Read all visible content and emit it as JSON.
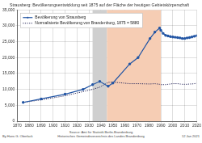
{
  "chart_data": {
    "type": "line",
    "title": "Strausberg: Bevölkerungsentwicklung seit 1875 auf der Fläche der heutigen Gebietskörperschaft",
    "x": [
      1875,
      1890,
      1910,
      1925,
      1933,
      1939,
      1946,
      1950,
      1964,
      1971,
      1981,
      1985,
      1989,
      1990,
      1992,
      1994,
      1996,
      1998,
      2000,
      2002,
      2004,
      2006,
      2008,
      2010,
      2012,
      2014,
      2016,
      2018,
      2020
    ],
    "series": [
      {
        "name": "Bevölkerung von Strausberg",
        "color": "#2255a4",
        "marker": "circle",
        "line_style": "solid",
        "values": [
          5900,
          7000,
          8500,
          10000,
          11500,
          12500,
          11000,
          12000,
          18000,
          20000,
          26000,
          28000,
          29300,
          28600,
          27600,
          27000,
          26800,
          26600,
          26500,
          26400,
          26300,
          26200,
          26000,
          26000,
          26200,
          26300,
          26500,
          26700,
          26900
        ]
      },
      {
        "name": "Normalisierte Bevölkerung von Brandenburg, 1875 = 5880",
        "color": "#2b2b5e",
        "line_style": "dotted",
        "values": [
          5900,
          6700,
          8000,
          9300,
          10000,
          10700,
          12200,
          12300,
          11800,
          11800,
          11700,
          11800,
          11600,
          11500,
          11500,
          11500,
          11600,
          11700,
          11800,
          11800,
          11800,
          11700,
          11600,
          11600,
          11600,
          11700,
          11700,
          11800,
          11900
        ]
      }
    ],
    "xlim": [
      1870,
      2020
    ],
    "xticks": [
      1870,
      1880,
      1890,
      1900,
      1910,
      1920,
      1930,
      1940,
      1950,
      1960,
      1970,
      1980,
      1990,
      2000,
      2010,
      2020
    ],
    "ylim": [
      0,
      35000
    ],
    "yticks": [
      0,
      {
        "value": 5000,
        "label": "5,000"
      },
      {
        "value": 10000,
        "label": "10,000"
      },
      {
        "value": 15000,
        "label": "15,000"
      },
      {
        "value": 20000,
        "label": "20,000"
      },
      {
        "value": 25000,
        "label": "25,000"
      },
      {
        "value": 30000,
        "label": "30,000"
      },
      {
        "value": 35000,
        "label": "35,000"
      }
    ],
    "shaded_periods": [
      {
        "from": 1933,
        "to": 1945,
        "color": "#cfcfcf"
      },
      {
        "from": 1945,
        "to": 1990,
        "color": "#f6cdb4"
      }
    ],
    "grid": true,
    "legend": "upper left",
    "footer": {
      "left": "By Hans G. Oberlack",
      "center": [
        "Source: Amt für Statistik Berlin-Brandenburg",
        "Historisches Gemeindeverzeichnis des Landes Brandenburg"
      ],
      "right": "12 Jan 2021"
    }
  }
}
